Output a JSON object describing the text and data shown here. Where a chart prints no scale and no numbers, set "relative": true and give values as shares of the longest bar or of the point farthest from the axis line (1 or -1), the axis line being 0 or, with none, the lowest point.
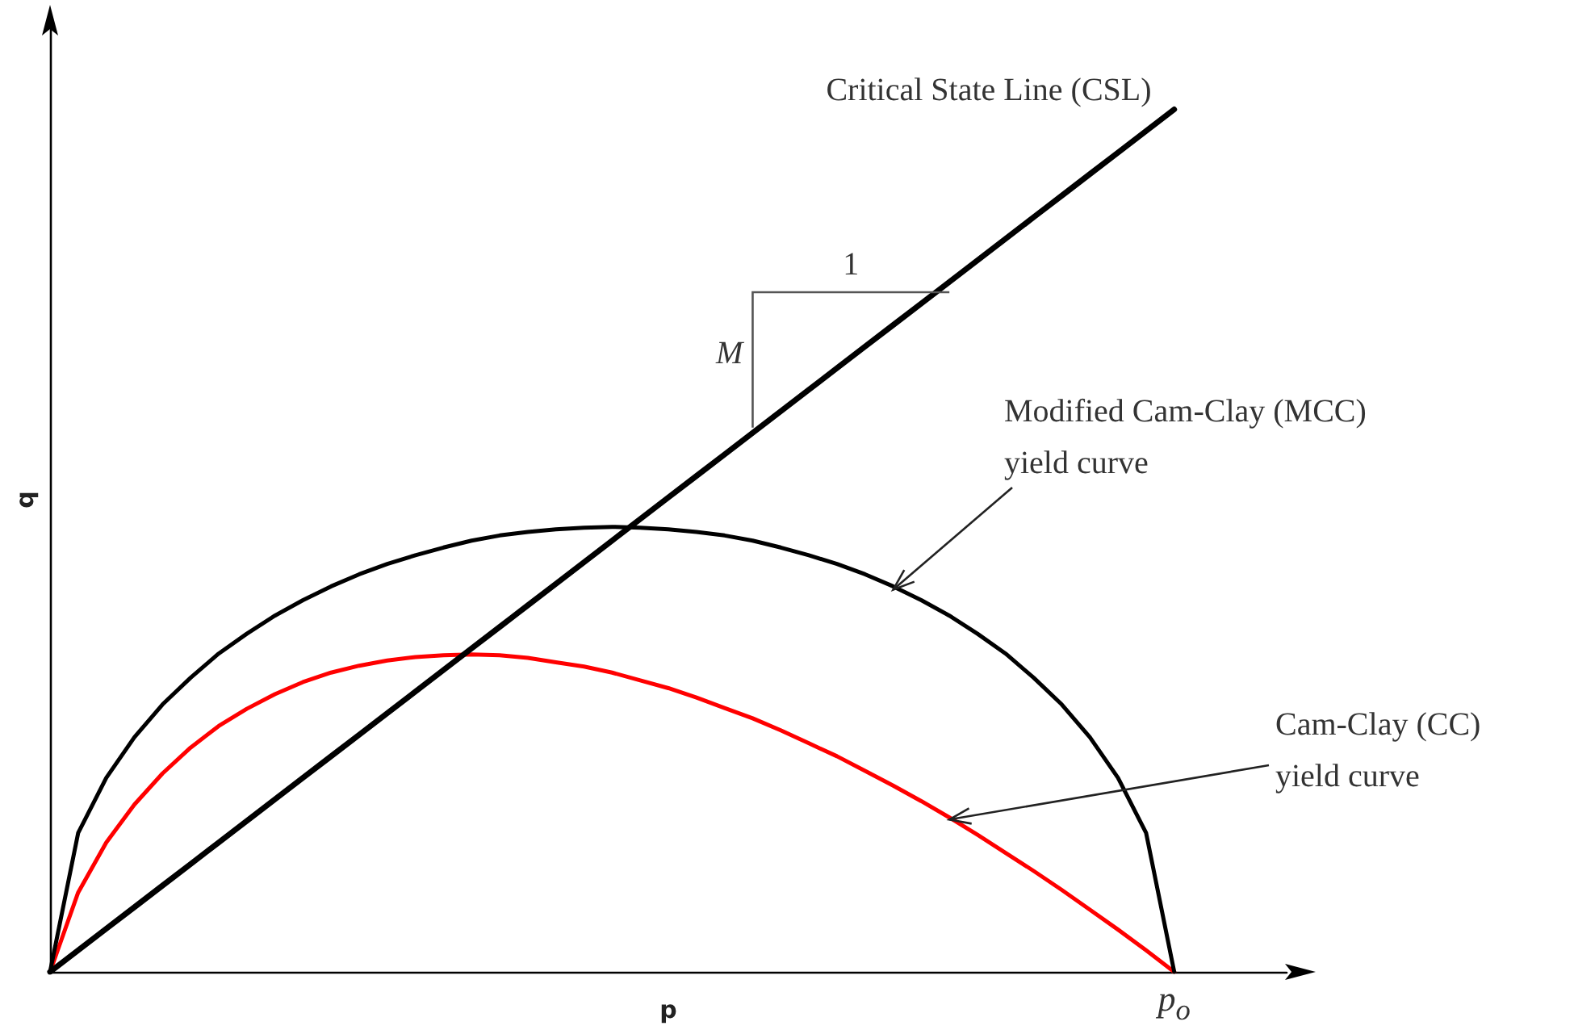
{
  "chart_data": {
    "type": "line",
    "relative": true,
    "xlabel": "p",
    "ylabel": "q",
    "marker": "none",
    "line_style": "solid",
    "categories": [
      null,
      null,
      null,
      null,
      null,
      null,
      null,
      null,
      null,
      null,
      null,
      null,
      null,
      null,
      null,
      null,
      null,
      null,
      null,
      null,
      null,
      null,
      null,
      null,
      null,
      null,
      null,
      null,
      null,
      null,
      null,
      null,
      null,
      null,
      null,
      null,
      null,
      null,
      null,
      null,
      null,
      null,
      null,
      null,
      null
    ],
    "series": [
      {
        "color": "#000000",
        "values": [
          0,
          0.025,
          0.05,
          0.075,
          0.1,
          0.125,
          0.15,
          0.175,
          0.2,
          0.225,
          0.25,
          0.275,
          0.3,
          0.325,
          0.35,
          0.375,
          0.4,
          0.425,
          0.45,
          0.475,
          0.5,
          0.525,
          0.55,
          0.575,
          0.6,
          0.625,
          0.65,
          0.675,
          0.7,
          0.725,
          0.75,
          0.775,
          0.8,
          0.825,
          0.85,
          0.875,
          0.9,
          0.925,
          0.95,
          0.975,
          1,
          null,
          null,
          null,
          null
        ]
      },
      {
        "color": "#000000",
        "values": [
          0,
          0.161,
          0.225,
          0.272,
          0.31,
          0.341,
          0.369,
          0.392,
          0.413,
          0.431,
          0.447,
          0.461,
          0.473,
          0.483,
          0.492,
          0.5,
          0.506,
          0.51,
          0.513,
          0.515,
          0.516,
          0.515,
          0.513,
          0.51,
          0.506,
          0.5,
          0.492,
          0.483,
          0.473,
          0.461,
          0.447,
          0.431,
          0.413,
          0.392,
          0.369,
          0.341,
          0.31,
          0.272,
          0.225,
          0.161,
          0,
          null,
          null,
          null,
          null
        ]
      },
      {
        "color": "#ff0000",
        "values": [
          0,
          0.092,
          0.15,
          0.194,
          0.23,
          0.26,
          0.285,
          0.305,
          0.322,
          0.336,
          0.347,
          0.355,
          0.361,
          0.365,
          0.367,
          0.368,
          0.367,
          0.364,
          0.359,
          0.354,
          0.347,
          0.338,
          0.329,
          0.318,
          0.306,
          0.294,
          0.28,
          0.265,
          0.25,
          0.233,
          0.216,
          0.198,
          0.179,
          0.159,
          0.138,
          0.117,
          0.095,
          0.072,
          0.049,
          0.025,
          0,
          null,
          null,
          null,
          null
        ]
      }
    ],
    "annotations": [
      "Critical State Line (CSL)",
      "Modified Cam-Clay (MCC) yield curve",
      "Cam-Clay (CC) yield curve",
      "1",
      "M",
      "p$_{o}$"
    ]
  }
}
